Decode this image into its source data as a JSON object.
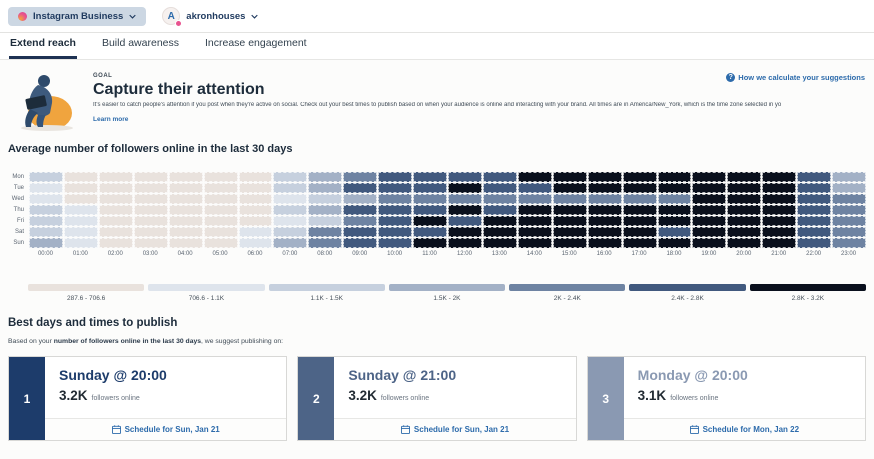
{
  "header": {
    "network_selector": {
      "label": "Instagram Business"
    },
    "account": {
      "avatar_letter": "A",
      "name": "akronhouses"
    }
  },
  "tabs": [
    {
      "label": "Extend reach",
      "active": true
    },
    {
      "label": "Build awareness",
      "active": false
    },
    {
      "label": "Increase engagement",
      "active": false
    }
  ],
  "goal": {
    "eyebrow": "GOAL",
    "title": "Capture their attention",
    "description": "It's easier to catch people's attention if you post when they're active on social. Check out your best times to publish based on when your audience is online and interacting with your brand. All times are in America/New_York, which is the time zone selected in your account settings.",
    "learn_more": "Learn more",
    "help_link": "How we calculate your suggestions"
  },
  "chart_data": {
    "type": "heatmap",
    "title": "Average number of followers online in the last 30 days",
    "rows": [
      "Mon",
      "Tue",
      "Wed",
      "Thu",
      "Fri",
      "Sat",
      "Sun"
    ],
    "columns": [
      "00:00",
      "01:00",
      "02:00",
      "03:00",
      "04:00",
      "05:00",
      "06:00",
      "07:00",
      "08:00",
      "09:00",
      "10:00",
      "11:00",
      "12:00",
      "13:00",
      "14:00",
      "15:00",
      "16:00",
      "17:00",
      "18:00",
      "19:00",
      "20:00",
      "21:00",
      "22:00",
      "23:00"
    ],
    "levels": [
      [
        2,
        0,
        0,
        0,
        0,
        0,
        0,
        2,
        3,
        4,
        5,
        5,
        5,
        5,
        6,
        6,
        6,
        6,
        6,
        6,
        6,
        6,
        5,
        3
      ],
      [
        1,
        0,
        0,
        0,
        0,
        0,
        0,
        2,
        3,
        5,
        5,
        5,
        6,
        5,
        5,
        6,
        6,
        6,
        6,
        6,
        6,
        6,
        5,
        3
      ],
      [
        1,
        0,
        0,
        0,
        0,
        0,
        0,
        1,
        2,
        3,
        4,
        4,
        4,
        4,
        4,
        4,
        4,
        4,
        4,
        6,
        6,
        6,
        5,
        4
      ],
      [
        2,
        1,
        0,
        0,
        0,
        0,
        0,
        2,
        3,
        5,
        5,
        5,
        6,
        5,
        6,
        6,
        6,
        6,
        6,
        6,
        6,
        6,
        5,
        4
      ],
      [
        2,
        1,
        0,
        0,
        0,
        0,
        0,
        1,
        2,
        4,
        5,
        6,
        5,
        6,
        6,
        6,
        6,
        6,
        6,
        6,
        6,
        6,
        5,
        4
      ],
      [
        2,
        1,
        0,
        0,
        0,
        0,
        1,
        2,
        4,
        5,
        5,
        5,
        6,
        6,
        6,
        6,
        6,
        6,
        5,
        6,
        6,
        6,
        5,
        4
      ],
      [
        3,
        1,
        0,
        0,
        0,
        0,
        1,
        3,
        4,
        5,
        5,
        6,
        6,
        6,
        6,
        6,
        6,
        6,
        6,
        6,
        6,
        6,
        5,
        4
      ]
    ],
    "palette": [
      "#e9e2dd",
      "#dee4ec",
      "#c6d0de",
      "#a3b1c6",
      "#6e83a2",
      "#41597e",
      "#0a101d"
    ],
    "legend": [
      {
        "label": "287.6 - 706.6",
        "color": "#e9e2dd"
      },
      {
        "label": "706.6 - 1.1K",
        "color": "#dee4ec"
      },
      {
        "label": "1.1K - 1.5K",
        "color": "#c6d0de"
      },
      {
        "label": "1.5K - 2K",
        "color": "#a3b1c6"
      },
      {
        "label": "2K - 2.4K",
        "color": "#6e83a2"
      },
      {
        "label": "2.4K - 2.8K",
        "color": "#41597e"
      },
      {
        "label": "2.8K - 3.2K",
        "color": "#0a101d"
      }
    ]
  },
  "suggestions": {
    "heading": "Best days and times to publish",
    "intro_prefix": "Based on your ",
    "intro_bold": "number of followers online in the last 30 days",
    "intro_suffix": ", we suggest publishing on:",
    "cards": [
      {
        "rank": "1",
        "title": "Sunday @ 20:00",
        "value": "3.2K",
        "value_label": "followers online",
        "action": "Schedule for Sun, Jan 21",
        "accent": "#1d3c6b"
      },
      {
        "rank": "2",
        "title": "Sunday @ 21:00",
        "value": "3.2K",
        "value_label": "followers online",
        "action": "Schedule for Sun, Jan 21",
        "accent": "#4d6487"
      },
      {
        "rank": "3",
        "title": "Monday @ 20:00",
        "value": "3.1K",
        "value_label": "followers online",
        "action": "Schedule for Mon, Jan 22",
        "accent": "#8a99b2"
      }
    ],
    "colors": {
      "link_blue": "#2d6bab",
      "pink": "#e8538f"
    }
  }
}
